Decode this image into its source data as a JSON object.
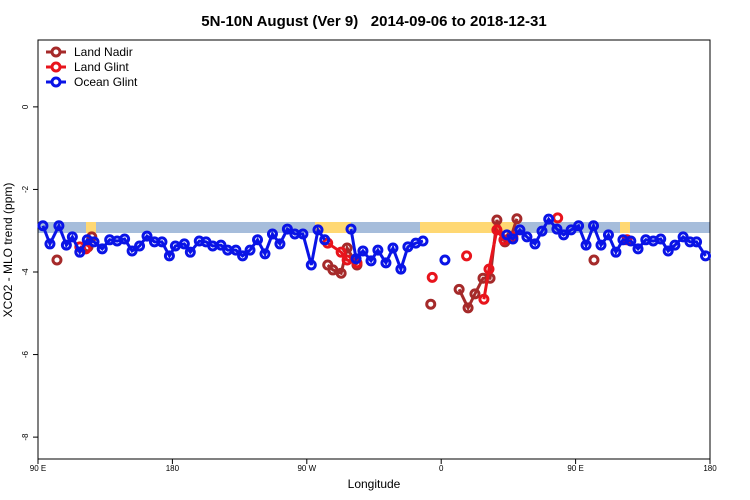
{
  "chart_data": {
    "type": "line",
    "title": "5N-10N August (Ver 9)   2014-09-06 to 2018-12-31",
    "x_label": "Longitude",
    "y_label": "XCO2 - MLO trend (ppm)",
    "xlim": [
      90,
      540
    ],
    "xticks": [
      {
        "value": 90,
        "label": "90 E"
      },
      {
        "value": 180,
        "label": "180"
      },
      {
        "value": 270,
        "label": "90 W"
      },
      {
        "value": 360,
        "label": "0"
      },
      {
        "value": 450,
        "label": "90 E"
      },
      {
        "value": 540,
        "label": "180"
      }
    ],
    "ylim": [
      -8.53,
      1.62
    ],
    "yticks": [
      0,
      -2,
      -4,
      -6,
      -8
    ],
    "legend": "top-left",
    "series": [
      {
        "name": "Land Nadir",
        "color": "#a52a2a",
        "x": [
          102.7,
          null,
          123.5,
          126,
          null,
          284,
          287.5,
          293,
          297,
          303.6,
          null,
          353,
          null,
          372,
          378,
          382.6,
          388,
          392.7,
          397.3,
          402.7,
          406.7,
          410.7,
          null,
          462.3
        ],
        "values": [
          -3.71,
          null,
          -3.39,
          -3.15,
          null,
          -3.83,
          -3.95,
          -4.03,
          -3.42,
          -3.83,
          null,
          -4.78,
          null,
          -4.42,
          -4.87,
          -4.53,
          -4.15,
          -4.15,
          -2.74,
          -3.27,
          -3.15,
          -2.71,
          null,
          -3.71
        ]
      },
      {
        "name": "Land Glint",
        "color": "#e8141c",
        "x": [
          118,
          122,
          null,
          284,
          293,
          297,
          303.6,
          null,
          354,
          null,
          377,
          null,
          388.6,
          392,
          397.3,
          402,
          408,
          null,
          438,
          null,
          484.4
        ],
        "values": [
          -3.39,
          -3.44,
          null,
          -3.3,
          -3.52,
          -3.71,
          -3.78,
          null,
          -4.13,
          null,
          -3.61,
          null,
          -4.66,
          -3.93,
          -2.98,
          -3.22,
          -3.15,
          null,
          -2.69,
          null,
          -3.22
        ]
      },
      {
        "name": "Ocean Glint",
        "color": "#0a14e6",
        "x": [
          93.3,
          98,
          104,
          109,
          113,
          118,
          123,
          127.5,
          133,
          138,
          143,
          148,
          153,
          158,
          163,
          168,
          173,
          178,
          182,
          188,
          192,
          198,
          202.5,
          207,
          212.5,
          217,
          222.5,
          227,
          232,
          237,
          242,
          247,
          252,
          257,
          262,
          267.4,
          273,
          277.5,
          282,
          null,
          299.6,
          303,
          307.6,
          313,
          317.6,
          323,
          327.7,
          333,
          337.7,
          343,
          347.8,
          null,
          362.5,
          null,
          404,
          408,
          412.7,
          417.4,
          422.8,
          427.5,
          432,
          437.5,
          442,
          447,
          452,
          457,
          462,
          467,
          472,
          477,
          481.7,
          487,
          491.8,
          497,
          502,
          507,
          512,
          516.5,
          522,
          526.6,
          531,
          537
        ],
        "values": [
          -2.88,
          -3.32,
          -2.88,
          -3.35,
          -3.15,
          -3.52,
          -3.22,
          -3.27,
          -3.44,
          -3.22,
          -3.25,
          -3.2,
          -3.49,
          -3.37,
          -3.13,
          -3.27,
          -3.27,
          -3.61,
          -3.37,
          -3.32,
          -3.52,
          -3.25,
          -3.27,
          -3.37,
          -3.35,
          -3.47,
          -3.47,
          -3.61,
          -3.47,
          -3.22,
          -3.56,
          -3.08,
          -3.32,
          -2.96,
          -3.08,
          -3.08,
          -3.83,
          -2.98,
          -3.22,
          null,
          -2.96,
          -3.68,
          -3.49,
          -3.73,
          -3.47,
          -3.78,
          -3.42,
          -3.93,
          -3.39,
          -3.3,
          -3.25,
          null,
          -3.71,
          null,
          -3.1,
          -3.2,
          -2.98,
          -3.15,
          -3.32,
          -3.01,
          -2.72,
          -2.96,
          -3.1,
          -2.98,
          -2.88,
          -3.35,
          -2.88,
          -3.35,
          -3.1,
          -3.52,
          -3.22,
          -3.25,
          -3.44,
          -3.22,
          -3.25,
          -3.2,
          -3.49,
          -3.35,
          -3.15,
          -3.27,
          -3.27,
          -3.61
        ]
      }
    ]
  }
}
